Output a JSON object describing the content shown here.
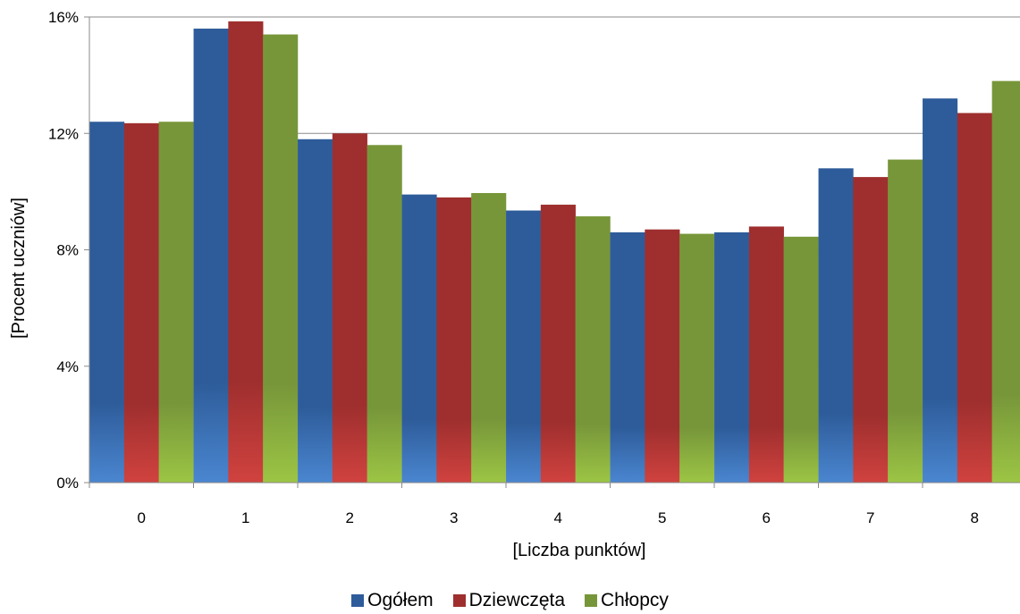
{
  "chart_data": {
    "type": "bar",
    "categories": [
      "0",
      "1",
      "2",
      "3",
      "4",
      "5",
      "6",
      "7",
      "8"
    ],
    "series": [
      {
        "name": "Ogółem",
        "color": "#2E5C9A",
        "values": [
          12.4,
          15.6,
          11.8,
          9.9,
          9.35,
          8.6,
          8.6,
          10.8,
          13.2
        ]
      },
      {
        "name": "Dziewczęta",
        "color": "#9E2F2E",
        "values": [
          12.35,
          15.85,
          12.0,
          9.8,
          9.55,
          8.7,
          8.8,
          10.5,
          12.7
        ]
      },
      {
        "name": "Chłopcy",
        "color": "#77963A",
        "values": [
          12.4,
          15.4,
          11.6,
          9.95,
          9.15,
          8.55,
          8.45,
          11.1,
          13.8
        ]
      }
    ],
    "xlabel": "[Liczba punktów]",
    "ylabel": "[Procent uczniów]",
    "ylim": [
      0,
      16
    ],
    "yticks": [
      "0%",
      "4%",
      "8%",
      "12%",
      "16%"
    ],
    "grid": true,
    "legend_position": "bottom"
  }
}
